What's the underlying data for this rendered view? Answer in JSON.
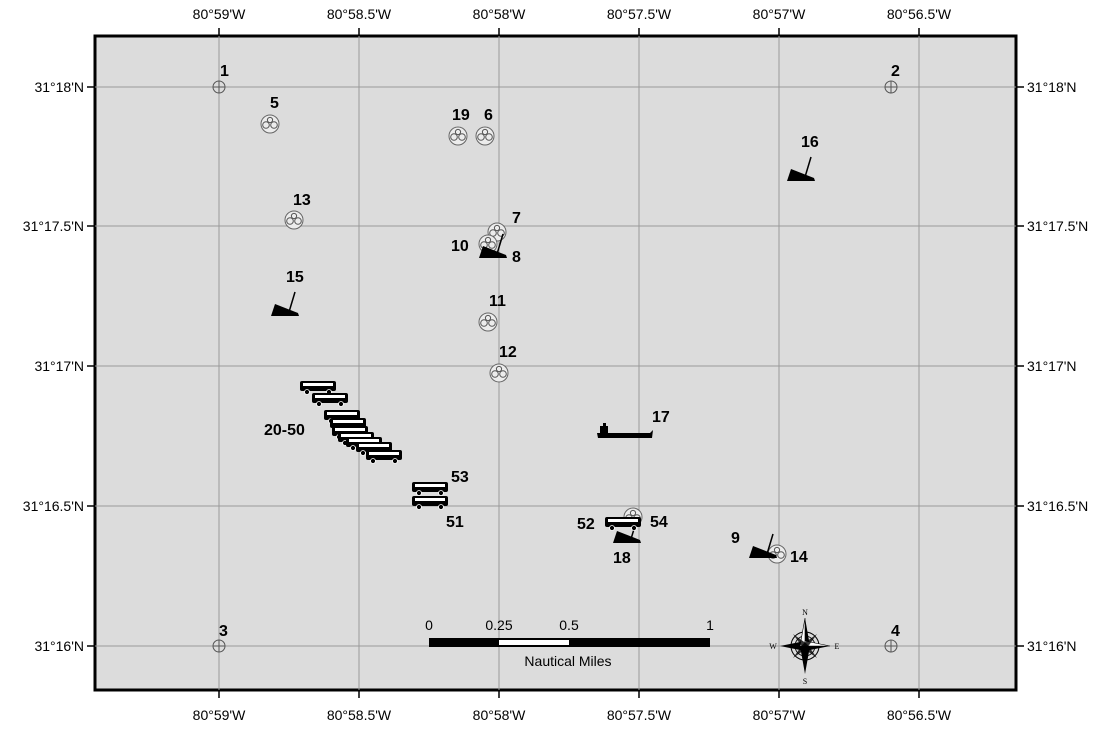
{
  "map": {
    "lon_ticks": [
      "80°59'W",
      "80°58.5'W",
      "80°58'W",
      "80°57.5'W",
      "80°57'W",
      "80°56.5'W"
    ],
    "lat_ticks": [
      "31°18'N",
      "31°17.5'N",
      "31°17'N",
      "31°16.5'N",
      "31°16'N"
    ],
    "labels": {
      "p1": "1",
      "p2": "2",
      "p3": "3",
      "p4": "4",
      "p5": "5",
      "p6": "6",
      "p7": "7",
      "p8": "8",
      "p9": "9",
      "p10": "10",
      "p11": "11",
      "p12": "12",
      "p13": "13",
      "p14": "14",
      "p15": "15",
      "p16": "16",
      "p17": "17",
      "p18": "18",
      "p19": "19",
      "p20_50": "20-50",
      "p51": "51",
      "p52": "52",
      "p53": "53",
      "p54": "54"
    },
    "scale_bar": {
      "ticks": [
        "0",
        "0.25",
        "0.5",
        "1"
      ],
      "unit": "Nautical Miles"
    },
    "compass": {
      "n": "N",
      "s": "S",
      "e": "E",
      "w": "W"
    },
    "colors": {
      "background": "#dcdcdc",
      "grid": "#9a9a9a",
      "frame": "#000000",
      "symbol": "#000000"
    }
  }
}
